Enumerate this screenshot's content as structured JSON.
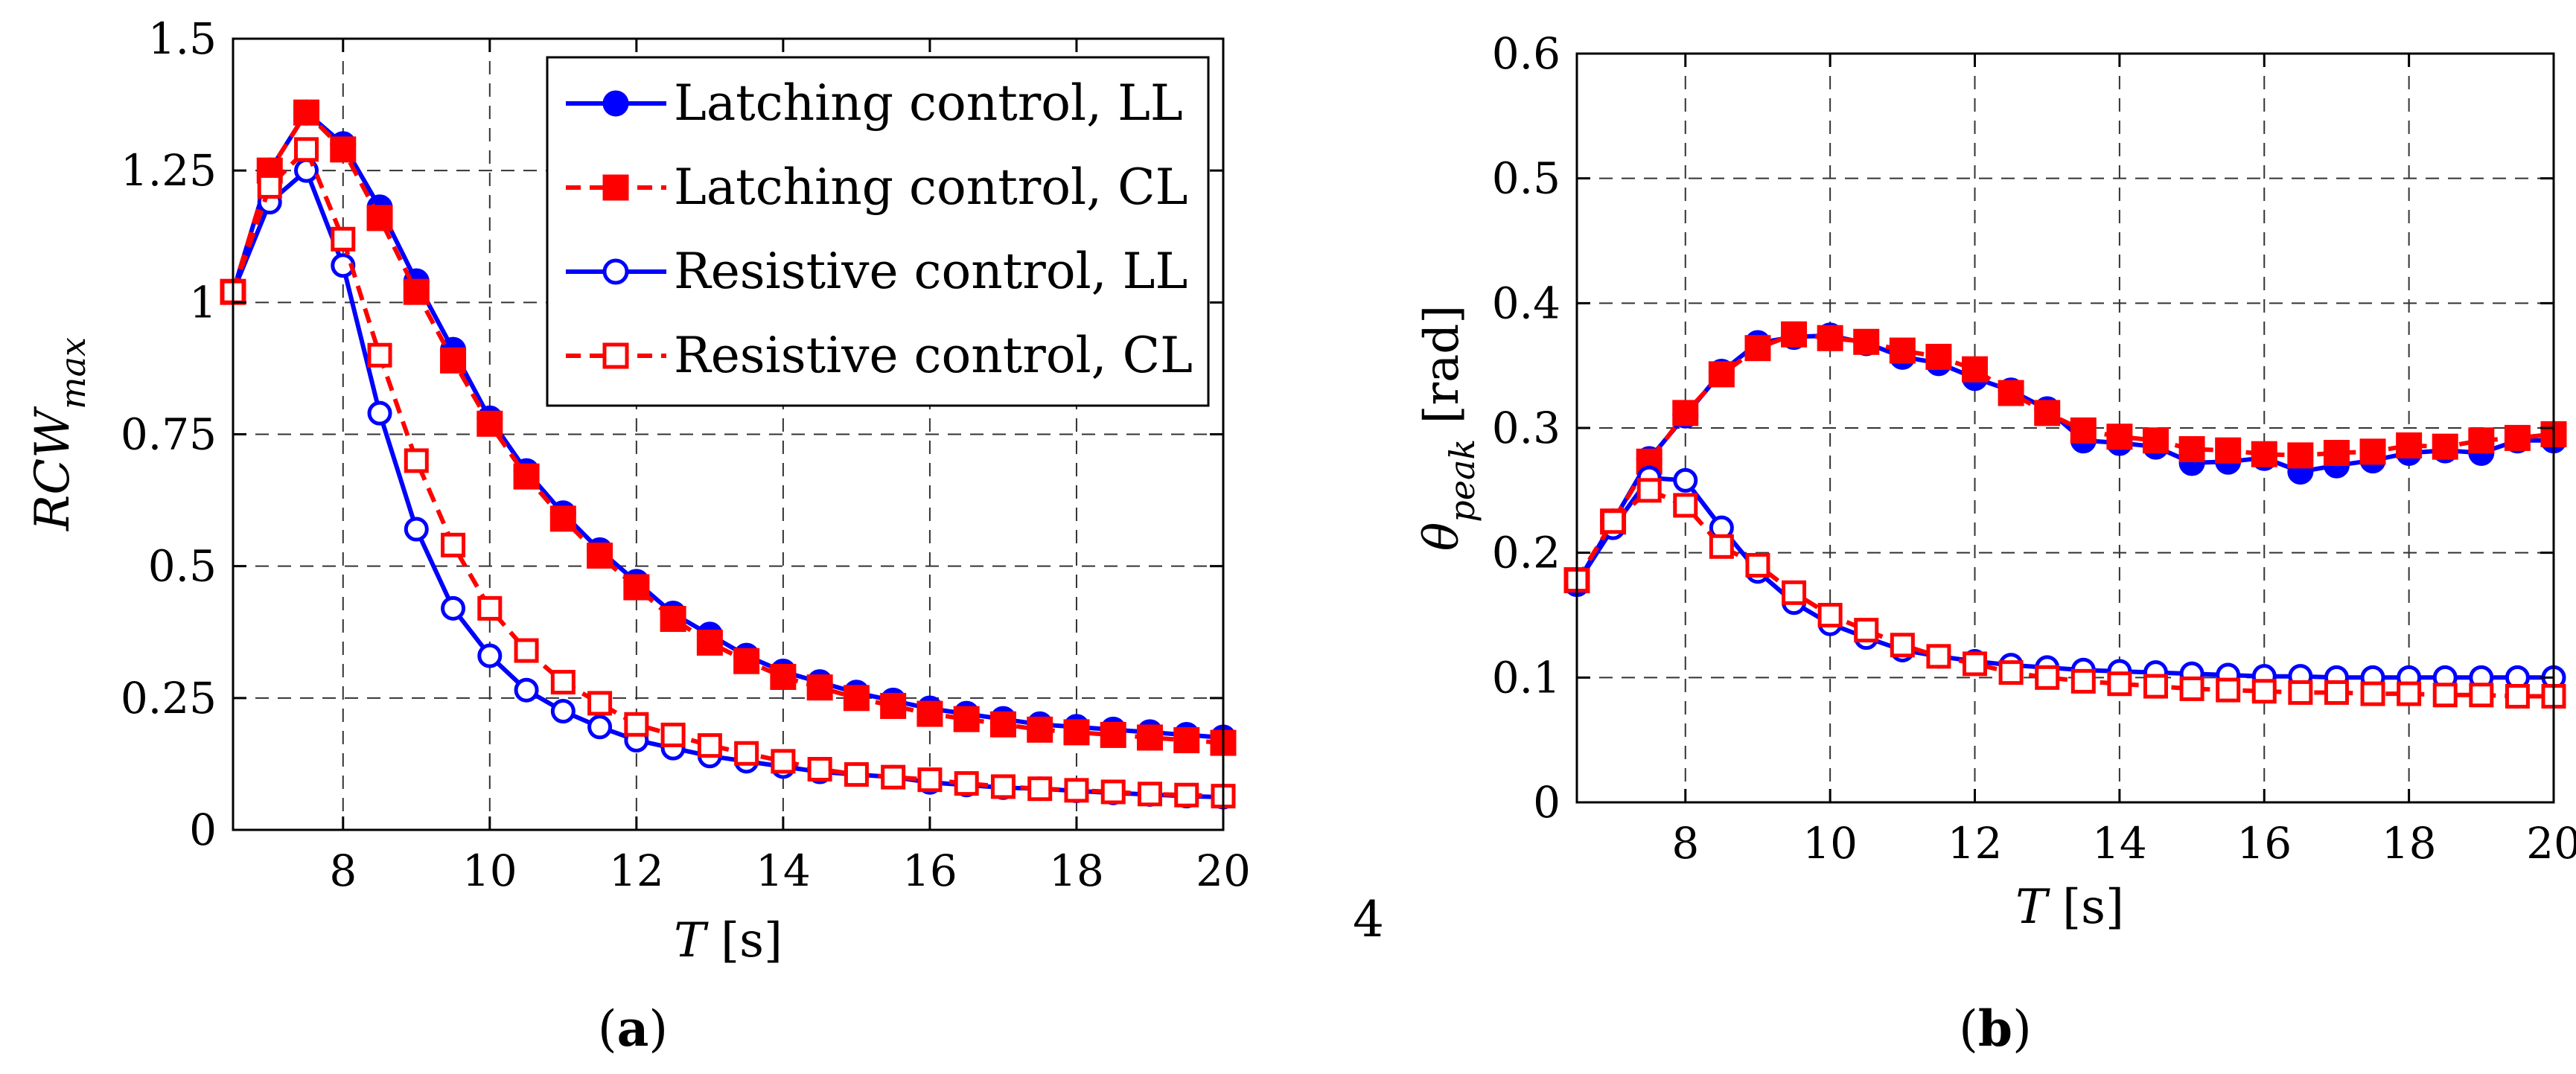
{
  "chart_data": [
    {
      "type": "line",
      "panel_label": "a",
      "xlabel": "T [s]",
      "xlabel_var": "T",
      "xlabel_unit": " [s]",
      "ylabel": "RCW_max",
      "ylabel_main": "RCW",
      "ylabel_sub": "max",
      "xlim": [
        6.5,
        20
      ],
      "ylim": [
        0,
        1.5
      ],
      "x_ticks": [
        8,
        10,
        12,
        14,
        16,
        18,
        20
      ],
      "y_ticks": [
        0,
        0.25,
        0.5,
        0.75,
        1,
        1.25,
        1.5
      ],
      "y_tick_labels": [
        "0",
        "0.25",
        "0.5",
        "0.75",
        "1",
        "1.25",
        "1.5"
      ],
      "grid": true,
      "legend_position": "top-right",
      "x": [
        6.5,
        7,
        7.5,
        8,
        8.5,
        9,
        9.5,
        10,
        10.5,
        11,
        11.5,
        12,
        12.5,
        13,
        13.5,
        14,
        14.5,
        15,
        15.5,
        16,
        16.5,
        17,
        17.5,
        18,
        18.5,
        19,
        19.5,
        20
      ],
      "series": [
        {
          "name": "Latching control, LL",
          "color": "#0000ff",
          "dash": "solid",
          "marker": "circle",
          "filled": true,
          "values": [
            1.02,
            1.25,
            1.36,
            1.3,
            1.18,
            1.04,
            0.91,
            0.78,
            0.68,
            0.6,
            0.53,
            0.47,
            0.41,
            0.37,
            0.33,
            0.3,
            0.28,
            0.26,
            0.245,
            0.23,
            0.22,
            0.21,
            0.2,
            0.195,
            0.19,
            0.185,
            0.18,
            0.175
          ]
        },
        {
          "name": "Latching control, CL",
          "color": "#ff0000",
          "dash": "dashed",
          "marker": "square",
          "filled": true,
          "values": [
            1.02,
            1.25,
            1.36,
            1.29,
            1.16,
            1.02,
            0.89,
            0.77,
            0.67,
            0.59,
            0.52,
            0.46,
            0.4,
            0.355,
            0.32,
            0.29,
            0.27,
            0.25,
            0.235,
            0.22,
            0.21,
            0.2,
            0.19,
            0.185,
            0.18,
            0.175,
            0.17,
            0.165
          ]
        },
        {
          "name": "Resistive control, LL",
          "color": "#0000ff",
          "dash": "solid",
          "marker": "circle",
          "filled": false,
          "values": [
            1.02,
            1.19,
            1.25,
            1.07,
            0.79,
            0.57,
            0.42,
            0.33,
            0.265,
            0.225,
            0.195,
            0.17,
            0.155,
            0.14,
            0.13,
            0.12,
            0.11,
            0.105,
            0.1,
            0.09,
            0.085,
            0.08,
            0.078,
            0.074,
            0.07,
            0.067,
            0.064,
            0.062
          ]
        },
        {
          "name": "Resistive control, CL",
          "color": "#ff0000",
          "dash": "dashed",
          "marker": "square",
          "filled": false,
          "values": [
            1.02,
            1.22,
            1.29,
            1.12,
            0.9,
            0.7,
            0.54,
            0.42,
            0.34,
            0.28,
            0.24,
            0.2,
            0.18,
            0.16,
            0.145,
            0.13,
            0.115,
            0.105,
            0.1,
            0.095,
            0.088,
            0.082,
            0.078,
            0.075,
            0.072,
            0.068,
            0.066,
            0.064
          ]
        }
      ]
    },
    {
      "type": "line",
      "panel_label": "b",
      "xlabel": "T [s]",
      "xlabel_var": "T",
      "xlabel_unit": " [s]",
      "ylabel": "θ_peak [rad]",
      "ylabel_main": "θ",
      "ylabel_sub": "peak",
      "ylabel_unit": " [rad]",
      "xlim": [
        6.5,
        20
      ],
      "ylim": [
        0,
        0.6
      ],
      "x_ticks": [
        8,
        10,
        12,
        14,
        16,
        18,
        20
      ],
      "y_ticks": [
        0,
        0.1,
        0.2,
        0.3,
        0.4,
        0.5,
        0.6
      ],
      "y_tick_labels": [
        "0",
        "0.1",
        "0.2",
        "0.3",
        "0.4",
        "0.5",
        "0.6"
      ],
      "grid": true,
      "x": [
        6.5,
        7,
        7.5,
        8,
        8.5,
        9,
        9.5,
        10,
        10.5,
        11,
        11.5,
        12,
        12.5,
        13,
        13.5,
        14,
        14.5,
        15,
        15.5,
        16,
        16.5,
        17,
        17.5,
        18,
        18.5,
        19,
        19.5,
        20
      ],
      "series": [
        {
          "name": "Latching control, LL",
          "color": "#0000ff",
          "dash": "solid",
          "marker": "circle",
          "filled": true,
          "values": [
            0.175,
            0.225,
            0.275,
            0.31,
            0.345,
            0.368,
            0.373,
            0.374,
            0.368,
            0.357,
            0.352,
            0.34,
            0.33,
            0.315,
            0.29,
            0.288,
            0.285,
            0.272,
            0.273,
            0.276,
            0.265,
            0.27,
            0.274,
            0.28,
            0.282,
            0.28,
            0.29,
            0.29
          ]
        },
        {
          "name": "Latching control, CL",
          "color": "#ff0000",
          "dash": "dashed",
          "marker": "square",
          "filled": true,
          "values": [
            0.178,
            0.225,
            0.273,
            0.312,
            0.343,
            0.364,
            0.375,
            0.372,
            0.369,
            0.362,
            0.357,
            0.347,
            0.328,
            0.312,
            0.298,
            0.293,
            0.29,
            0.283,
            0.282,
            0.279,
            0.278,
            0.28,
            0.281,
            0.286,
            0.285,
            0.29,
            0.292,
            0.295
          ]
        },
        {
          "name": "Resistive control, LL",
          "color": "#0000ff",
          "dash": "solid",
          "marker": "circle",
          "filled": false,
          "values": [
            0.175,
            0.22,
            0.26,
            0.258,
            0.22,
            0.185,
            0.16,
            0.143,
            0.132,
            0.122,
            0.117,
            0.113,
            0.11,
            0.108,
            0.106,
            0.105,
            0.104,
            0.103,
            0.102,
            0.101,
            0.101,
            0.1,
            0.1,
            0.1,
            0.1,
            0.1,
            0.1,
            0.1
          ]
        },
        {
          "name": "Resistive control, CL",
          "color": "#ff0000",
          "dash": "dashed",
          "marker": "square",
          "filled": false,
          "values": [
            0.178,
            0.225,
            0.25,
            0.238,
            0.205,
            0.19,
            0.168,
            0.15,
            0.138,
            0.126,
            0.117,
            0.111,
            0.104,
            0.1,
            0.097,
            0.095,
            0.093,
            0.091,
            0.09,
            0.089,
            0.088,
            0.088,
            0.087,
            0.087,
            0.086,
            0.086,
            0.085,
            0.085
          ]
        }
      ]
    }
  ],
  "annotations": {
    "stray_number": "4"
  }
}
